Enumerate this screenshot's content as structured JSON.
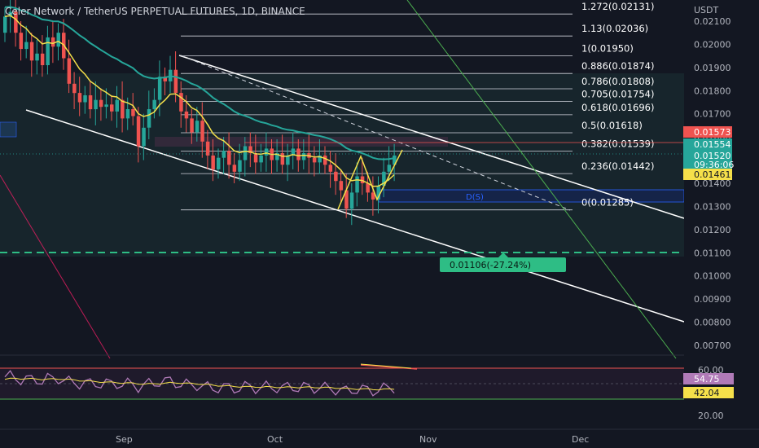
{
  "header": {
    "symbol_title": "Celer Network / TetherUS PERPETUAL FUTURES, 1D, BINANCE"
  },
  "price_axis": {
    "currency": "USDT",
    "ticks": [
      "0.02100",
      "0.02000",
      "0.01900",
      "0.01800",
      "0.01700",
      "0.01600",
      "0.01500",
      "0.01400",
      "0.01300",
      "0.01200",
      "0.01100",
      "0.01000",
      "0.00900",
      "0.00800",
      "0.00700"
    ],
    "tick_values": [
      0.021,
      0.02,
      0.019,
      0.018,
      0.017,
      0.016,
      0.015,
      0.014,
      0.013,
      0.012,
      0.011,
      0.01,
      0.009,
      0.008,
      0.007
    ]
  },
  "time_axis": {
    "labels": [
      "Sep",
      "Oct",
      "Nov",
      "Dec"
    ]
  },
  "price_labels": {
    "upper": "0.01573",
    "ma": "0.01554",
    "last": "0.01520",
    "countdown": "09:36:06",
    "ema": "0.01461"
  },
  "fib_levels": [
    {
      "label": "1.272(0.02131)",
      "value": 0.02131
    },
    {
      "label": "1.13(0.02036)",
      "value": 0.02036
    },
    {
      "label": "1(0.01950)",
      "value": 0.0195
    },
    {
      "label": "0.886(0.01874)",
      "value": 0.01874
    },
    {
      "label": "0.786(0.01808)",
      "value": 0.01808
    },
    {
      "label": "0.705(0.01754)",
      "value": 0.01754
    },
    {
      "label": "0.618(0.01696)",
      "value": 0.01696
    },
    {
      "label": "0.5(0.01618)",
      "value": 0.01618
    },
    {
      "label": "0.382(0.01539)",
      "value": 0.01539
    },
    {
      "label": "0.236(0.01442)",
      "value": 0.01442
    },
    {
      "label": "0(0.01285)",
      "value": 0.01285
    }
  ],
  "target": {
    "label": "0.01106(-27.24%)",
    "value": 0.01106
  },
  "zone_label": "D(S)",
  "rsi": {
    "ticks": [
      "60.00",
      "20.00"
    ],
    "value_label": "54.75",
    "ma_label": "42.04"
  },
  "colors": {
    "background": "#131722",
    "up": "#26a69a",
    "down": "#ef5350",
    "ma_teal": "#26a69a",
    "ema_yellow": "#f5e04a",
    "rsi": "#b07ab7",
    "green_dashed": "#2ebd85"
  },
  "chart_data": {
    "type": "candlestick",
    "title": "Celer Network / TetherUS PERPETUAL FUTURES, 1D, BINANCE",
    "ylabel": "USDT",
    "ylim": [
      0.0066,
      0.0219
    ],
    "x_labels": [
      "Sep",
      "Oct",
      "Nov",
      "Dec"
    ],
    "candles_close": [
      0.0212,
      0.0214,
      0.0205,
      0.0198,
      0.0201,
      0.0193,
      0.0196,
      0.0191,
      0.0203,
      0.0199,
      0.0205,
      0.0194,
      0.0183,
      0.0179,
      0.0175,
      0.0178,
      0.0172,
      0.0176,
      0.0173,
      0.0174,
      0.0171,
      0.0176,
      0.0168,
      0.0172,
      0.0169,
      0.0156,
      0.0164,
      0.0172,
      0.0176,
      0.0186,
      0.0184,
      0.0189,
      0.0179,
      0.0171,
      0.0168,
      0.0162,
      0.0167,
      0.0158,
      0.0152,
      0.0146,
      0.0151,
      0.0154,
      0.0148,
      0.0145,
      0.015,
      0.0156,
      0.0153,
      0.0149,
      0.0152,
      0.0155,
      0.015,
      0.0153,
      0.0148,
      0.0152,
      0.0155,
      0.015,
      0.0153,
      0.0151,
      0.0149,
      0.0152,
      0.0148,
      0.0145,
      0.0141,
      0.0137,
      0.0129,
      0.0136,
      0.0143,
      0.014,
      0.0136,
      0.0133,
      0.0139,
      0.0145,
      0.0148,
      0.0152
    ],
    "ma_values_label": "0.01554",
    "ema_values_label": "0.01461",
    "rsi_last": 54.75,
    "rsi_ma_last": 42.04
  }
}
